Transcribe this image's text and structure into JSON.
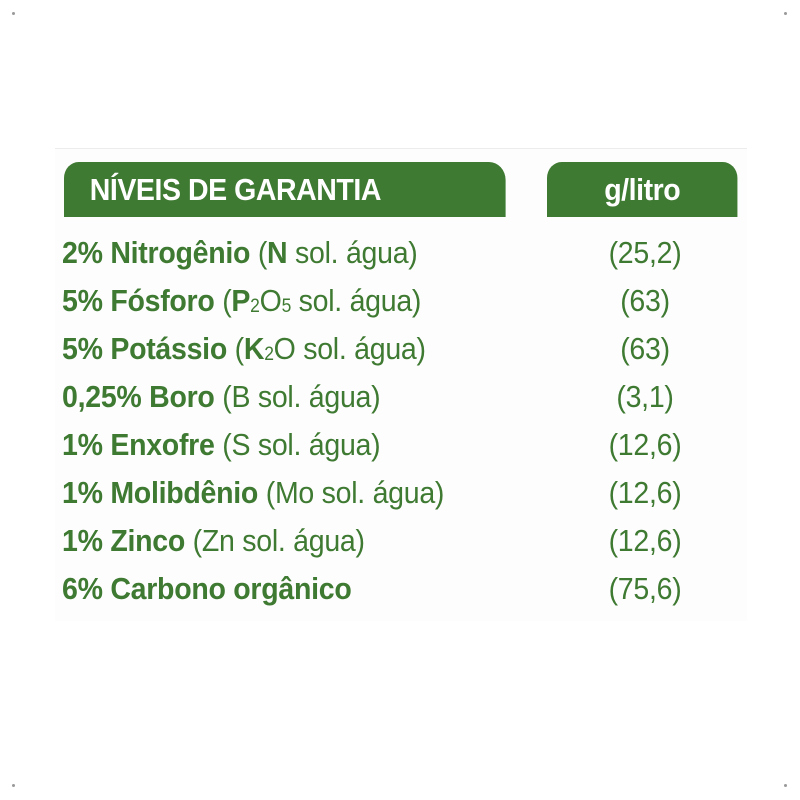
{
  "header": {
    "title": "NÍVEIS DE GARANTIA",
    "unit": "g/litro"
  },
  "rows": [
    {
      "pct": "2% Nitrogênio",
      "open": "(",
      "sym": "N",
      "rest": " sol. água)",
      "value": "(25,2)"
    },
    {
      "pct": "5% Fósforo",
      "open": "(",
      "sym": "P",
      "sub1": "2",
      "sym2": "O",
      "sub2": "5",
      "rest": " sol. água)",
      "value": "(63)"
    },
    {
      "pct": "5% Potássio",
      "open": "(",
      "sym": "K",
      "sub1": "2",
      "sym2": "O",
      "rest": " sol. água)",
      "value": "(63)"
    },
    {
      "pct": "0,25% Boro",
      "note": "(B sol. água)",
      "value": "(3,1)"
    },
    {
      "pct": "1% Enxofre",
      "note": "(S sol. água)",
      "value": "(12,6)"
    },
    {
      "pct": "1% Molibdênio",
      "note": "(Mo sol. água)",
      "value": "(12,6)"
    },
    {
      "pct": "1% Zinco",
      "note": "(Zn sol. água)",
      "value": "(12,6)"
    },
    {
      "pct": "6% Carbono orgânico",
      "value": "(75,6)"
    }
  ]
}
